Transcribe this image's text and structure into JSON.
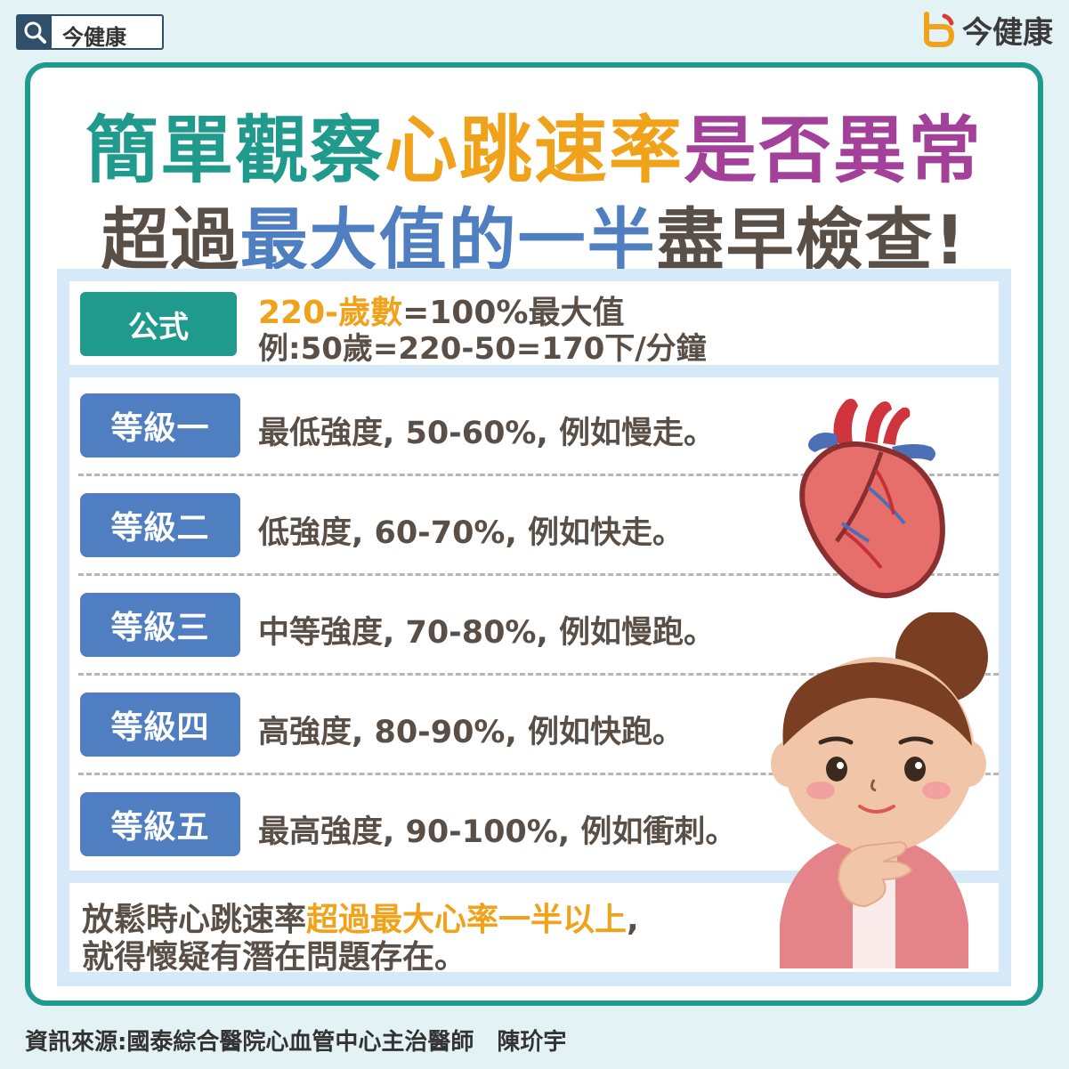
{
  "header": {
    "search_label": "今健康",
    "brand_name": "今健康"
  },
  "title": {
    "line1": {
      "part1": "簡單觀察",
      "part2": "心跳速率",
      "part3": "是否異常"
    },
    "line2": {
      "part1": "超過",
      "part2": "最大值的一半",
      "part3": "盡早檢查!"
    }
  },
  "formula": {
    "badge": "公式",
    "highlight": "220-歲數",
    "rest": "=100%最大值",
    "example": "例:50歲=220-50=170下/分鐘"
  },
  "levels": [
    {
      "badge": "等級一",
      "text": "最低強度, 50-60%, 例如慢走。"
    },
    {
      "badge": "等級二",
      "text": "低強度, 60-70%, 例如快走。"
    },
    {
      "badge": "等級三",
      "text": "中等強度, 70-80%, 例如慢跑。"
    },
    {
      "badge": "等級四",
      "text": "高強度, 80-90%, 例如快跑。"
    },
    {
      "badge": "等級五",
      "text": "最高強度, 90-100%, 例如衝刺。"
    }
  ],
  "note": {
    "line1_prefix": "放鬆時心跳速率",
    "line1_highlight": "超過最大心率一半以上",
    "line1_suffix": ",",
    "line2": "就得懷疑有潛在問題存在。"
  },
  "source": "資訊來源:國泰綜合醫院心血管中心主治醫師　陳玠宇",
  "colors": {
    "teal": "#1f9a8c",
    "orange": "#f0a21b",
    "purple": "#a3409a",
    "blue": "#4f7fc0",
    "brown": "#5a4f47",
    "panel": "#d6e9f8",
    "background": "#e3f2f4"
  },
  "icons": [
    "search-icon",
    "brand-logo-icon",
    "heart-illustration",
    "woman-illustration"
  ]
}
